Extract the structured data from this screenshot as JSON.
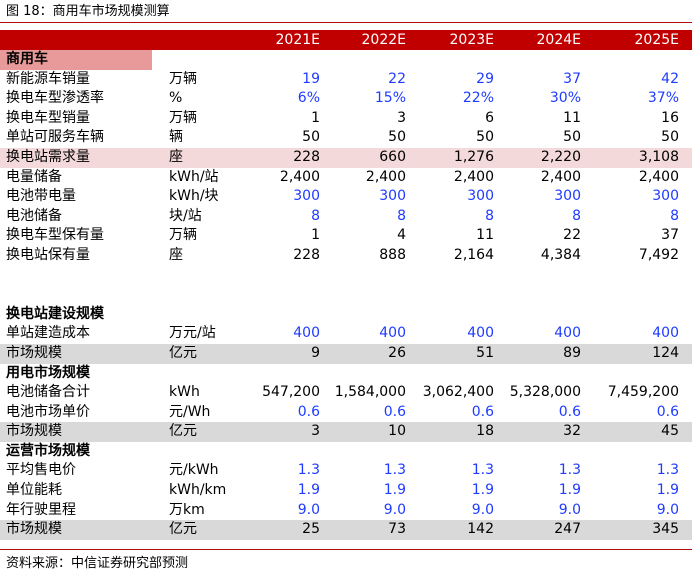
{
  "figure_title": "图 18：商用车市场规模测算",
  "source": "资料来源：中信证券研究部预测",
  "header": {
    "label": "",
    "unit": "",
    "years": [
      "2021E",
      "2022E",
      "2023E",
      "2024E",
      "2025E"
    ]
  },
  "rows": [
    {
      "type": "section",
      "style": "badge",
      "label": "商用车",
      "unit": "",
      "values": [
        "",
        "",
        "",
        "",
        ""
      ]
    },
    {
      "type": "data",
      "label": "新能源车销量",
      "unit": "万辆",
      "values": [
        "19",
        "22",
        "29",
        "37",
        "42"
      ],
      "color": "blue"
    },
    {
      "type": "data",
      "label": "换电车型渗透率",
      "unit": "%",
      "values": [
        "6%",
        "15%",
        "22%",
        "30%",
        "37%"
      ],
      "color": "blue"
    },
    {
      "type": "data",
      "label": "换电车型销量",
      "unit": "万辆",
      "values": [
        "1",
        "3",
        "6",
        "11",
        "16"
      ],
      "color": "black"
    },
    {
      "type": "data",
      "label": "单站可服务车辆",
      "unit": "辆",
      "values": [
        "50",
        "50",
        "50",
        "50",
        "50"
      ],
      "color": "black"
    },
    {
      "type": "data",
      "style": "pink",
      "label": "换电站需求量",
      "unit": "座",
      "values": [
        "228",
        "660",
        "1,276",
        "2,220",
        "3,108"
      ],
      "color": "black"
    },
    {
      "type": "data",
      "label": "电量储备",
      "unit": "kWh/站",
      "values": [
        "2,400",
        "2,400",
        "2,400",
        "2,400",
        "2,400"
      ],
      "color": "black"
    },
    {
      "type": "data",
      "label": "电池带电量",
      "unit": "kWh/块",
      "values": [
        "300",
        "300",
        "300",
        "300",
        "300"
      ],
      "color": "blue"
    },
    {
      "type": "data",
      "label": "电池储备",
      "unit": "块/站",
      "values": [
        "8",
        "8",
        "8",
        "8",
        "8"
      ],
      "color": "blue"
    },
    {
      "type": "data",
      "label": "换电车型保有量",
      "unit": "万辆",
      "values": [
        "1",
        "4",
        "11",
        "22",
        "37"
      ],
      "color": "black"
    },
    {
      "type": "data",
      "label": "换电站保有量",
      "unit": "座",
      "values": [
        "228",
        "888",
        "2,164",
        "4,384",
        "7,492"
      ],
      "color": "black"
    },
    {
      "type": "blank",
      "label": "",
      "unit": "",
      "values": [
        "",
        "",
        "",
        "",
        ""
      ]
    },
    {
      "type": "blank",
      "label": "",
      "unit": "",
      "values": [
        "",
        "",
        "",
        "",
        ""
      ]
    },
    {
      "type": "section",
      "label": "换电站建设规模",
      "unit": "",
      "values": [
        "",
        "",
        "",
        "",
        ""
      ]
    },
    {
      "type": "data",
      "label": "单站建造成本",
      "unit": "万元/站",
      "values": [
        "400",
        "400",
        "400",
        "400",
        "400"
      ],
      "color": "blue"
    },
    {
      "type": "data",
      "style": "gray",
      "label": "市场规模",
      "unit": "亿元",
      "values": [
        "9",
        "26",
        "51",
        "89",
        "124"
      ],
      "color": "black"
    },
    {
      "type": "section",
      "label": "用电市场规模",
      "unit": "",
      "values": [
        "",
        "",
        "",
        "",
        ""
      ]
    },
    {
      "type": "data",
      "label": "电池储备合计",
      "unit": "kWh",
      "values": [
        "547,200",
        "1,584,000",
        "3,062,400",
        "5,328,000",
        "7,459,200"
      ],
      "color": "black"
    },
    {
      "type": "data",
      "label": "电池市场单价",
      "unit": "元/Wh",
      "values": [
        "0.6",
        "0.6",
        "0.6",
        "0.6",
        "0.6"
      ],
      "color": "blue"
    },
    {
      "type": "data",
      "style": "gray",
      "label": "市场规模",
      "unit": "亿元",
      "values": [
        "3",
        "10",
        "18",
        "32",
        "45"
      ],
      "color": "black"
    },
    {
      "type": "section",
      "label": "运营市场规模",
      "unit": "",
      "values": [
        "",
        "",
        "",
        "",
        ""
      ]
    },
    {
      "type": "data",
      "label": "平均售电价",
      "unit": "元/kWh",
      "values": [
        "1.3",
        "1.3",
        "1.3",
        "1.3",
        "1.3"
      ],
      "color": "blue"
    },
    {
      "type": "data",
      "label": "单位能耗",
      "unit": "kWh/km",
      "values": [
        "1.9",
        "1.9",
        "1.9",
        "1.9",
        "1.9"
      ],
      "color": "blue"
    },
    {
      "type": "data",
      "label": "年行驶里程",
      "unit": "万km",
      "values": [
        "9.0",
        "9.0",
        "9.0",
        "9.0",
        "9.0"
      ],
      "color": "blue"
    },
    {
      "type": "data",
      "style": "gray",
      "label": "市场规模",
      "unit": "亿元",
      "values": [
        "25",
        "73",
        "142",
        "247",
        "345"
      ],
      "color": "black"
    }
  ]
}
